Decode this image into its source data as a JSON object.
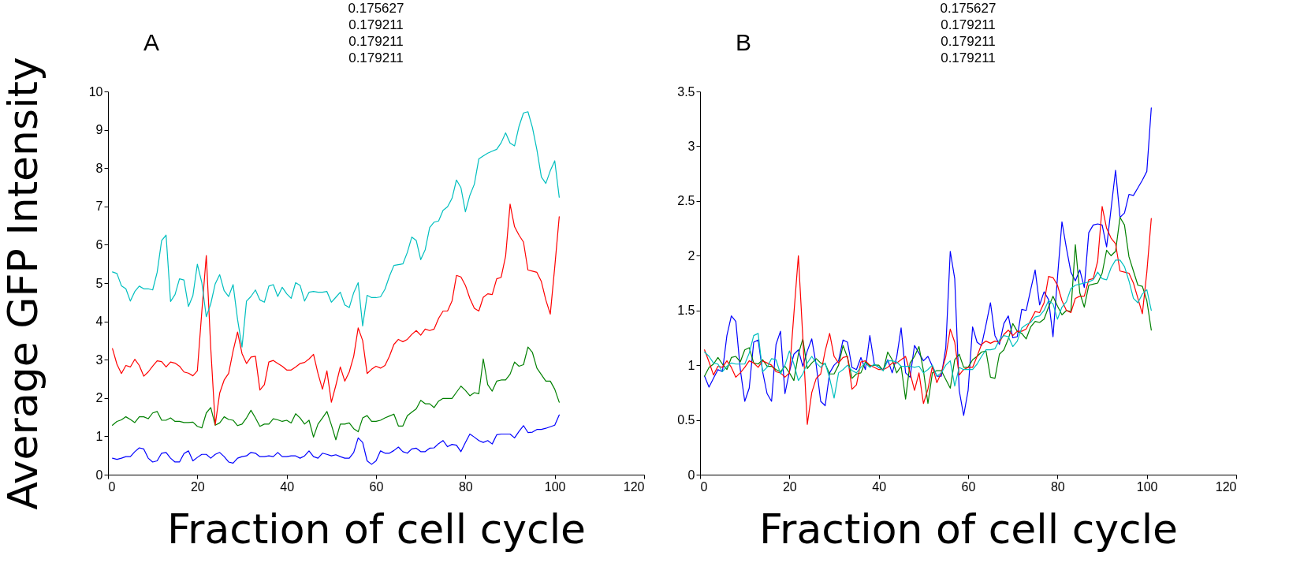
{
  "chart_data": [
    {
      "type": "line",
      "title": "A",
      "ylabel": "Average GFP Intensity",
      "xlabel": "Fraction of cell cycle",
      "annotations": [
        "0.175627",
        "0.179211",
        "0.179211",
        "0.179211"
      ],
      "x": [
        1,
        2,
        3,
        4,
        5,
        6,
        7,
        8,
        9,
        10,
        11,
        12,
        13,
        14,
        15,
        16,
        17,
        18,
        19,
        20,
        21,
        22,
        23,
        24,
        25,
        26,
        27,
        28,
        29,
        30,
        31,
        32,
        33,
        34,
        35,
        36,
        37,
        38,
        39,
        40,
        41,
        42,
        43,
        44,
        45,
        46,
        47,
        48,
        49,
        50,
        51,
        52,
        53,
        54,
        55,
        56,
        57,
        58,
        59,
        60,
        61,
        62,
        63,
        64,
        65,
        66,
        67,
        68,
        69,
        70,
        71,
        72,
        73,
        74,
        75,
        76,
        77,
        78,
        79,
        80,
        81,
        82,
        83,
        84,
        85,
        86,
        87,
        88,
        89,
        90,
        91,
        92,
        93,
        94,
        95,
        96,
        97,
        98,
        99,
        100,
        101
      ],
      "xlim": [
        0,
        120
      ],
      "xticks": [
        0,
        20,
        40,
        60,
        80,
        100,
        120
      ],
      "ylim": [
        0,
        10
      ],
      "yticks": [
        0,
        1,
        2,
        3,
        4,
        5,
        6,
        7,
        8,
        9,
        10
      ],
      "grid": false,
      "line_style": "solid",
      "series": [
        {
          "color": "#0000ff",
          "values": [
            0.43,
            0.4,
            0.43,
            0.47,
            0.47,
            0.6,
            0.7,
            0.67,
            0.43,
            0.33,
            0.36,
            0.56,
            0.58,
            0.43,
            0.33,
            0.33,
            0.55,
            0.62,
            0.36,
            0.45,
            0.53,
            0.53,
            0.43,
            0.53,
            0.58,
            0.47,
            0.33,
            0.3,
            0.43,
            0.47,
            0.49,
            0.58,
            0.56,
            0.47,
            0.47,
            0.49,
            0.47,
            0.58,
            0.47,
            0.47,
            0.49,
            0.49,
            0.43,
            0.49,
            0.62,
            0.47,
            0.43,
            0.56,
            0.53,
            0.49,
            0.52,
            0.47,
            0.43,
            0.43,
            0.58,
            0.96,
            0.84,
            0.36,
            0.27,
            0.36,
            0.62,
            0.56,
            0.56,
            0.63,
            0.72,
            0.6,
            0.56,
            0.67,
            0.69,
            0.6,
            0.6,
            0.69,
            0.7,
            0.81,
            0.89,
            0.73,
            0.79,
            0.77,
            0.6,
            0.84,
            1.06,
            0.98,
            0.89,
            0.84,
            0.89,
            0.8,
            1.04,
            1.06,
            1.06,
            1.06,
            0.96,
            1.13,
            1.28,
            1.1,
            1.11,
            1.18,
            1.18,
            1.21,
            1.25,
            1.29,
            1.56
          ]
        },
        {
          "color": "#008000",
          "values": [
            1.29,
            1.39,
            1.43,
            1.51,
            1.44,
            1.36,
            1.51,
            1.51,
            1.46,
            1.61,
            1.65,
            1.42,
            1.42,
            1.48,
            1.39,
            1.39,
            1.36,
            1.36,
            1.37,
            1.26,
            1.22,
            1.61,
            1.75,
            1.29,
            1.35,
            1.51,
            1.44,
            1.42,
            1.28,
            1.32,
            1.48,
            1.68,
            1.48,
            1.26,
            1.32,
            1.32,
            1.46,
            1.43,
            1.39,
            1.42,
            1.35,
            1.59,
            1.48,
            1.32,
            1.42,
            0.98,
            1.32,
            1.48,
            1.65,
            1.3,
            0.91,
            1.32,
            1.32,
            1.35,
            1.2,
            1.12,
            1.48,
            1.54,
            1.39,
            1.39,
            1.42,
            1.48,
            1.53,
            1.58,
            1.27,
            1.27,
            1.54,
            1.63,
            1.72,
            1.94,
            1.85,
            1.85,
            1.75,
            1.92,
            1.99,
            1.99,
            1.99,
            2.15,
            2.31,
            2.2,
            2.06,
            2.14,
            2.11,
            3.02,
            2.35,
            2.18,
            2.44,
            2.47,
            2.47,
            2.62,
            2.94,
            2.83,
            2.87,
            3.33,
            3.19,
            2.78,
            2.61,
            2.44,
            2.44,
            2.23,
            1.89
          ]
        },
        {
          "color": "#ff0000",
          "values": [
            3.29,
            2.88,
            2.64,
            2.85,
            2.81,
            3.01,
            2.85,
            2.57,
            2.68,
            2.83,
            2.97,
            2.95,
            2.81,
            2.94,
            2.91,
            2.83,
            2.68,
            2.65,
            2.58,
            2.71,
            4.26,
            5.72,
            3.3,
            1.3,
            2.13,
            2.47,
            2.64,
            3.23,
            3.72,
            3.16,
            2.9,
            3.07,
            3.09,
            2.21,
            2.35,
            2.94,
            2.98,
            2.9,
            2.83,
            2.73,
            2.73,
            2.81,
            2.9,
            2.93,
            3.02,
            3.14,
            2.64,
            2.23,
            2.71,
            1.89,
            2.33,
            2.81,
            2.44,
            2.68,
            3.09,
            3.83,
            3.5,
            2.64,
            2.75,
            2.83,
            2.78,
            2.85,
            3.09,
            3.4,
            3.53,
            3.47,
            3.53,
            3.66,
            3.76,
            3.64,
            3.8,
            3.76,
            3.8,
            4.08,
            4.27,
            4.27,
            4.53,
            5.2,
            5.16,
            4.94,
            4.6,
            4.34,
            4.27,
            4.63,
            4.72,
            4.7,
            5.11,
            5.15,
            5.7,
            7.06,
            6.47,
            6.25,
            6.07,
            5.34,
            5.31,
            5.28,
            5.04,
            4.56,
            4.19,
            5.42,
            6.73
          ]
        },
        {
          "color": "#00bfbf",
          "values": [
            5.29,
            5.25,
            4.93,
            4.85,
            4.53,
            4.78,
            4.92,
            4.85,
            4.85,
            4.82,
            5.28,
            6.11,
            6.25,
            4.52,
            4.7,
            5.11,
            5.08,
            4.39,
            4.67,
            5.49,
            5.01,
            4.12,
            4.46,
            4.98,
            5.22,
            4.8,
            4.65,
            4.96,
            4.05,
            3.33,
            4.53,
            4.65,
            4.82,
            4.56,
            4.5,
            4.92,
            4.96,
            4.65,
            4.89,
            4.72,
            4.6,
            5.01,
            4.94,
            4.53,
            4.76,
            4.78,
            4.76,
            4.76,
            4.78,
            4.5,
            4.63,
            4.76,
            4.43,
            4.36,
            4.75,
            5.01,
            3.88,
            4.68,
            4.62,
            4.62,
            4.64,
            4.84,
            5.18,
            5.46,
            5.48,
            5.5,
            5.8,
            6.2,
            6.11,
            5.61,
            5.87,
            6.45,
            6.59,
            6.62,
            6.9,
            6.99,
            7.21,
            7.69,
            7.49,
            6.86,
            7.29,
            7.58,
            8.24,
            8.32,
            8.39,
            8.44,
            8.49,
            8.66,
            8.92,
            8.65,
            8.58,
            9.09,
            9.44,
            9.47,
            9.06,
            8.48,
            7.77,
            7.6,
            7.93,
            8.19,
            7.24
          ]
        }
      ]
    },
    {
      "type": "line",
      "title": "B",
      "xlabel": "Fraction of cell cycle",
      "annotations": [
        "0.175627",
        "0.179211",
        "0.179211",
        "0.179211"
      ],
      "x": [
        1,
        2,
        3,
        4,
        5,
        6,
        7,
        8,
        9,
        10,
        11,
        12,
        13,
        14,
        15,
        16,
        17,
        18,
        19,
        20,
        21,
        22,
        23,
        24,
        25,
        26,
        27,
        28,
        29,
        30,
        31,
        32,
        33,
        34,
        35,
        36,
        37,
        38,
        39,
        40,
        41,
        42,
        43,
        44,
        45,
        46,
        47,
        48,
        49,
        50,
        51,
        52,
        53,
        54,
        55,
        56,
        57,
        58,
        59,
        60,
        61,
        62,
        63,
        64,
        65,
        66,
        67,
        68,
        69,
        70,
        71,
        72,
        73,
        74,
        75,
        76,
        77,
        78,
        79,
        80,
        81,
        82,
        83,
        84,
        85,
        86,
        87,
        88,
        89,
        90,
        91,
        92,
        93,
        94,
        95,
        96,
        97,
        98,
        99,
        100,
        101
      ],
      "xlim": [
        0,
        120
      ],
      "xticks": [
        0,
        20,
        40,
        60,
        80,
        100,
        120
      ],
      "ylim": [
        0,
        3.5
      ],
      "yticks": [
        0,
        0.5,
        1,
        1.5,
        2,
        2.5,
        3,
        3.5
      ],
      "grid": false,
      "line_style": "solid",
      "series": [
        {
          "color": "#0000ff",
          "values": [
            0.9,
            0.8,
            0.88,
            0.96,
            0.94,
            1.27,
            1.45,
            1.4,
            0.96,
            0.67,
            0.79,
            1.21,
            1.23,
            0.94,
            0.74,
            0.67,
            1.19,
            1.31,
            0.74,
            0.94,
            1.1,
            1.14,
            0.99,
            1.13,
            1.24,
            1.0,
            0.67,
            0.63,
            0.93,
            1.0,
            1.04,
            1.23,
            1.21,
            0.98,
            0.96,
            1.07,
            0.96,
            1.27,
            1.01,
            0.98,
            0.96,
            1.05,
            0.93,
            1.07,
            1.34,
            0.93,
            0.89,
            1.18,
            1.11,
            1.04,
            1.08,
            0.99,
            0.9,
            0.9,
            1.16,
            2.04,
            1.79,
            0.77,
            0.54,
            0.77,
            1.35,
            1.21,
            1.18,
            1.37,
            1.57,
            1.27,
            1.19,
            1.38,
            1.45,
            1.25,
            1.26,
            1.51,
            1.5,
            1.69,
            1.87,
            1.55,
            1.67,
            1.6,
            1.26,
            1.8,
            2.31,
            2.07,
            1.85,
            1.77,
            1.87,
            1.71,
            2.21,
            2.28,
            2.29,
            2.28,
            2.08,
            2.43,
            2.78,
            2.35,
            2.39,
            2.56,
            2.55,
            2.62,
            2.69,
            2.77,
            3.35
          ]
        },
        {
          "color": "#008000",
          "values": [
            0.9,
            0.98,
            1.01,
            1.07,
            1.01,
            0.96,
            1.07,
            1.08,
            1.03,
            1.14,
            1.16,
            1.02,
            1.01,
            1.05,
            0.99,
            0.99,
            0.96,
            0.94,
            0.99,
            0.93,
            0.86,
            1.1,
            1.24,
            0.97,
            1.02,
            1.06,
            1.02,
            1.01,
            0.92,
            0.92,
            1.0,
            1.18,
            1.07,
            0.88,
            0.92,
            0.93,
            1.03,
            0.99,
            1.0,
            1.0,
            0.95,
            1.12,
            1.05,
            0.93,
            0.99,
            0.69,
            1.02,
            1.08,
            1.17,
            0.95,
            0.65,
            0.93,
            0.95,
            0.95,
            0.87,
            0.79,
            1.05,
            1.1,
            0.98,
            0.98,
            1.05,
            1.08,
            1.12,
            1.13,
            0.89,
            0.88,
            1.1,
            1.14,
            1.24,
            1.38,
            1.31,
            1.29,
            1.24,
            1.35,
            1.4,
            1.39,
            1.42,
            1.53,
            1.63,
            1.54,
            1.46,
            1.5,
            1.49,
            2.1,
            1.66,
            1.53,
            1.73,
            1.74,
            1.75,
            1.84,
            2.05,
            2.0,
            2.04,
            2.35,
            2.28,
            1.99,
            1.86,
            1.73,
            1.72,
            1.59,
            1.32
          ]
        },
        {
          "color": "#ff0000",
          "values": [
            1.14,
            1.03,
            0.91,
            0.99,
            0.98,
            1.04,
            0.98,
            0.89,
            0.93,
            0.98,
            1.04,
            1.02,
            0.98,
            1.04,
            1.02,
            1.0,
            0.94,
            0.93,
            0.89,
            0.93,
            1.47,
            2.0,
            1.25,
            0.46,
            0.75,
            0.88,
            0.92,
            1.13,
            1.29,
            1.08,
            1.02,
            1.07,
            1.08,
            0.78,
            0.82,
            1.03,
            1.04,
            1.0,
            0.98,
            0.96,
            0.96,
            0.98,
            1.02,
            1.02,
            1.05,
            1.08,
            0.93,
            0.77,
            0.93,
            0.65,
            0.78,
            0.99,
            0.84,
            0.93,
            1.08,
            1.33,
            1.21,
            0.91,
            0.96,
            0.98,
            0.98,
            1.08,
            1.19,
            1.22,
            1.2,
            1.22,
            1.21,
            1.28,
            1.32,
            1.27,
            1.31,
            1.31,
            1.33,
            1.41,
            1.49,
            1.48,
            1.57,
            1.81,
            1.8,
            1.73,
            1.59,
            1.5,
            1.48,
            1.61,
            1.63,
            1.63,
            1.78,
            1.79,
            1.95,
            2.45,
            2.25,
            2.16,
            2.11,
            1.86,
            1.85,
            1.84,
            1.75,
            1.61,
            1.47,
            1.85,
            2.34
          ]
        },
        {
          "color": "#00bfbf",
          "values": [
            1.12,
            1.08,
            1.02,
            1.01,
            0.94,
            0.99,
            1.02,
            1.01,
            1.01,
            1.01,
            1.11,
            1.27,
            1.29,
            0.94,
            0.98,
            1.06,
            1.05,
            0.92,
            1.0,
            1.13,
            1.01,
            0.86,
            0.92,
            1.02,
            1.08,
            1.02,
            0.98,
            1.02,
            0.88,
            0.7,
            0.93,
            0.96,
            1.0,
            0.95,
            0.93,
            0.98,
            1.02,
            0.98,
            1.01,
            0.98,
            0.95,
            1.04,
            1.04,
            1.03,
            0.99,
            0.99,
            0.99,
            0.98,
            0.99,
            0.93,
            0.96,
            1.0,
            0.9,
            0.93,
            1.0,
            1.04,
            0.81,
            0.98,
            0.96,
            0.96,
            0.96,
            1.01,
            1.08,
            1.14,
            1.14,
            1.15,
            1.23,
            1.27,
            1.26,
            1.17,
            1.22,
            1.34,
            1.37,
            1.39,
            1.44,
            1.45,
            1.5,
            1.59,
            1.56,
            1.42,
            1.53,
            1.58,
            1.7,
            1.73,
            1.74,
            1.75,
            1.76,
            1.78,
            1.85,
            1.79,
            1.78,
            1.89,
            1.96,
            1.96,
            1.9,
            1.77,
            1.61,
            1.57,
            1.65,
            1.69,
            1.5
          ]
        }
      ]
    }
  ]
}
